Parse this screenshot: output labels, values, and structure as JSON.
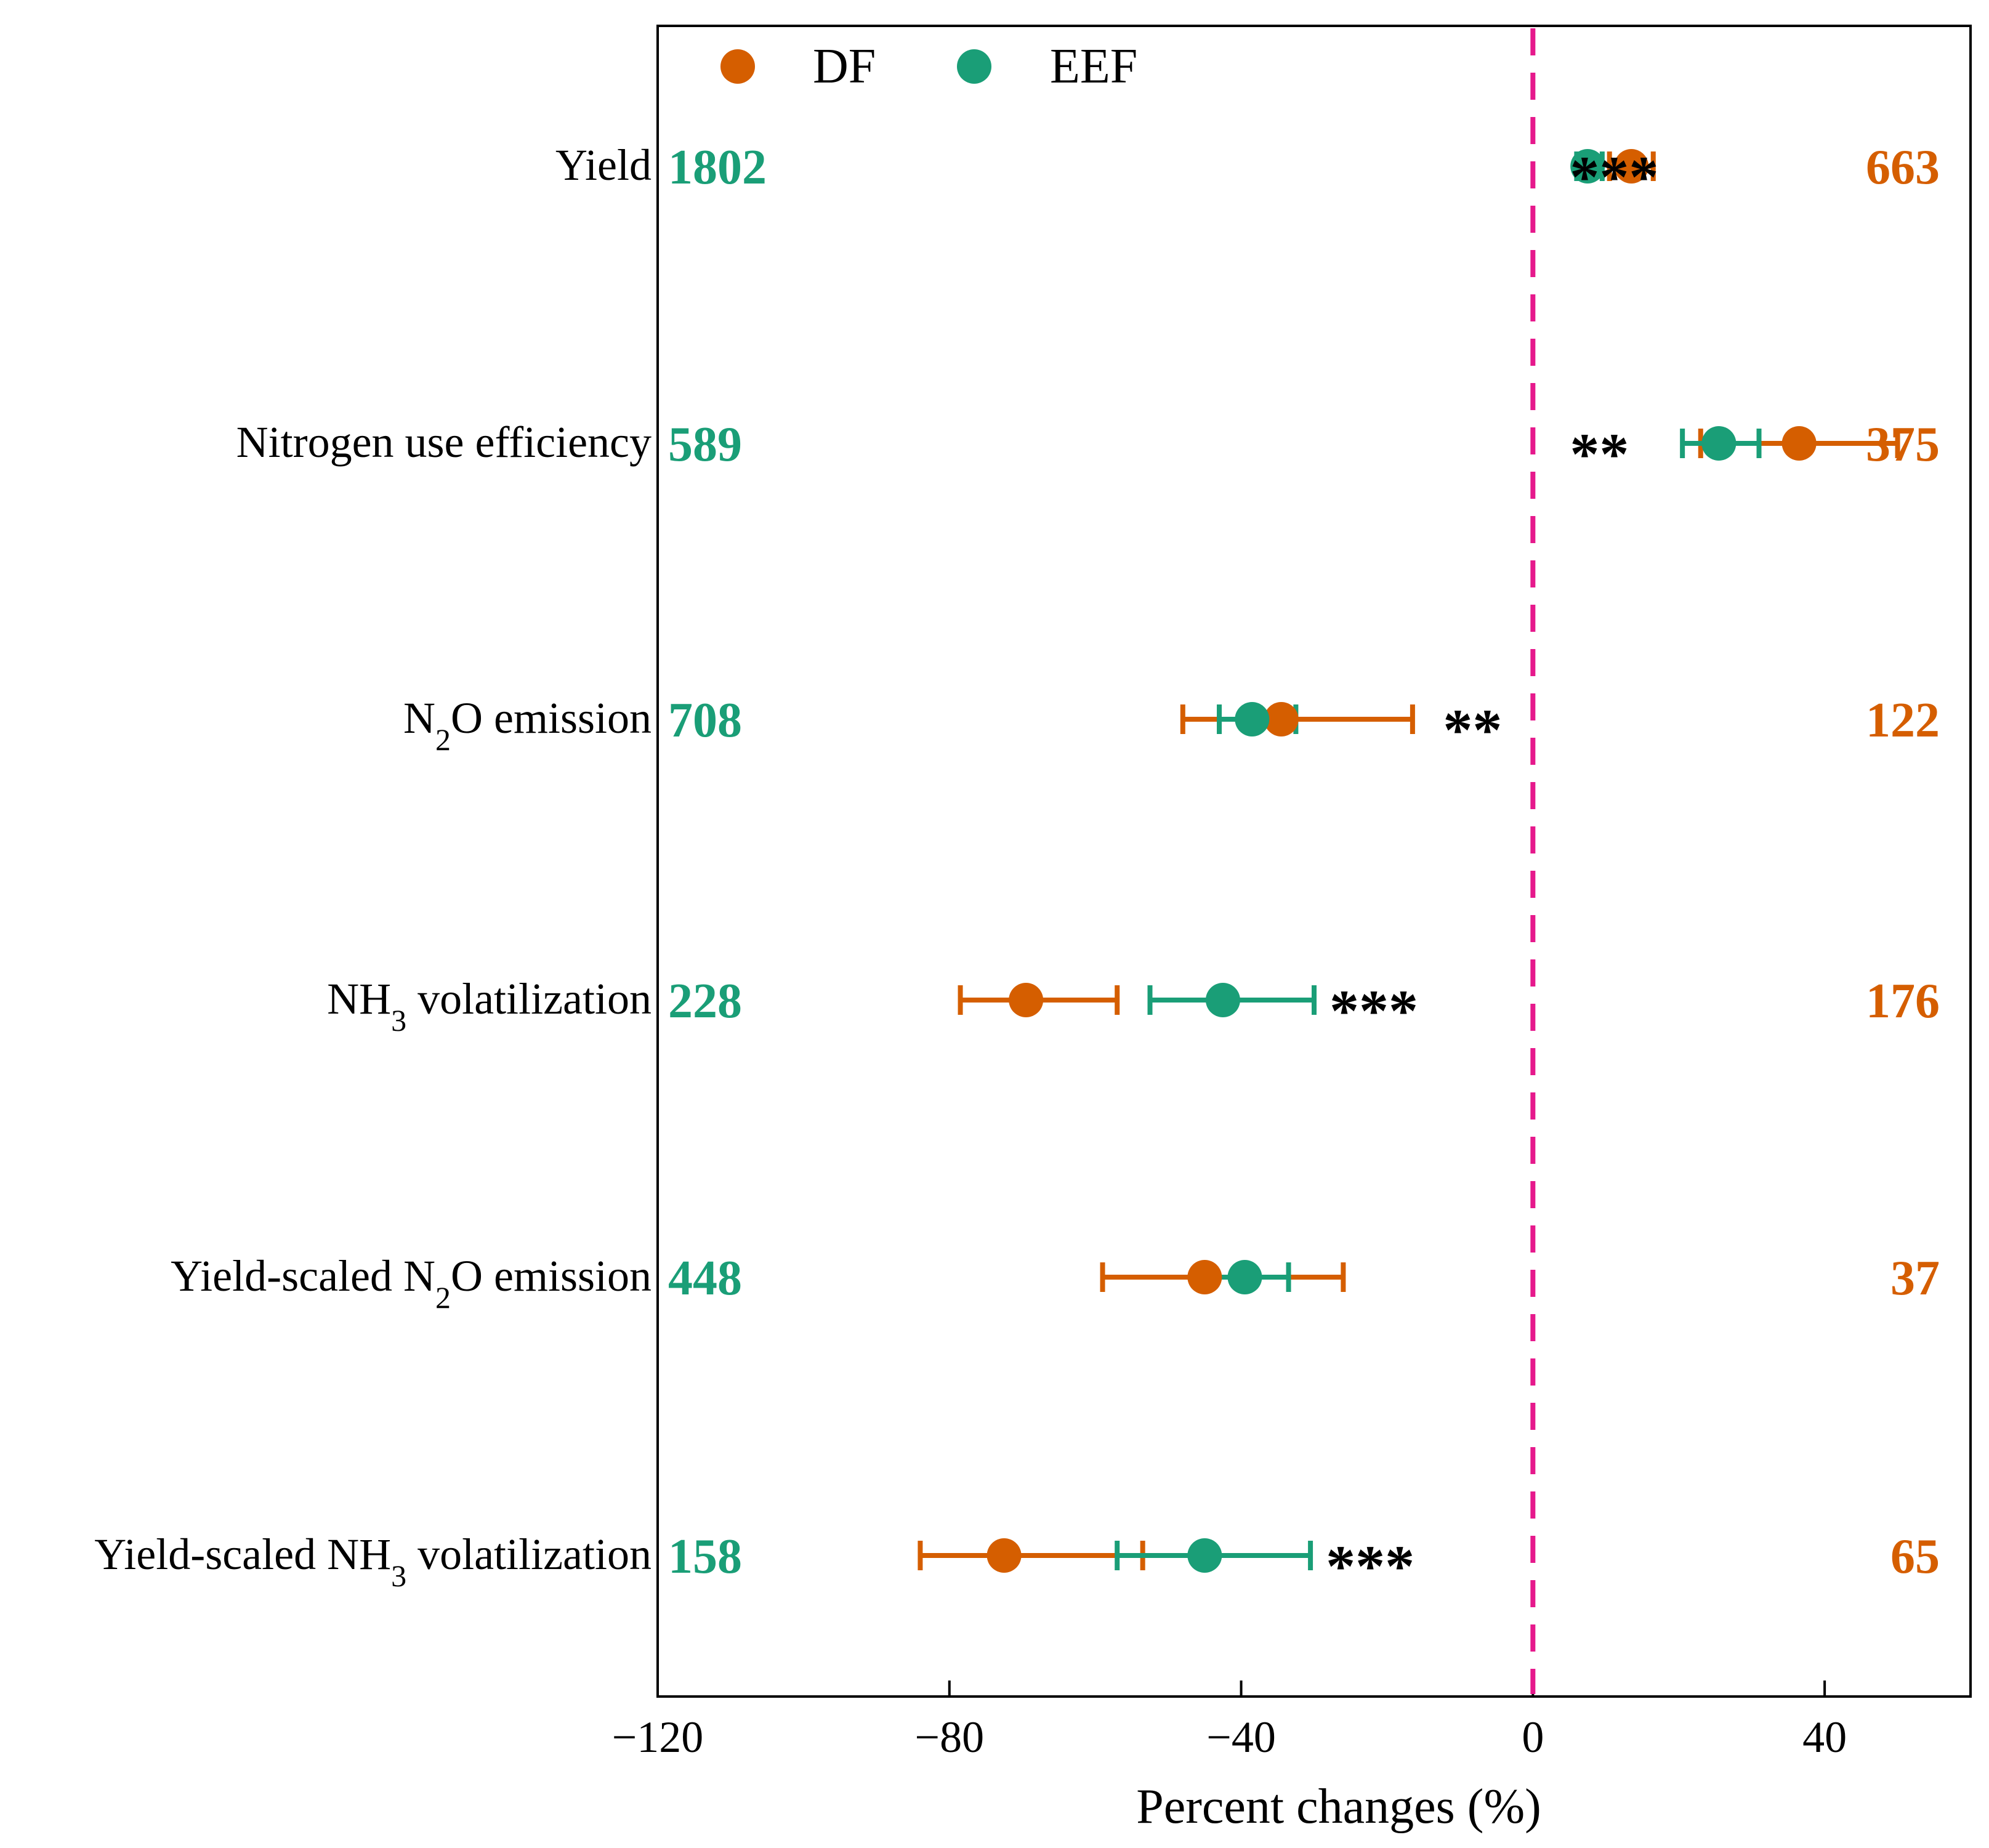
{
  "chart_data": {
    "type": "scatter",
    "subtype": "forest-plot",
    "xlabel": "Percent changes (%)",
    "xlim": [
      -120,
      60
    ],
    "xticks": [
      -120,
      -80,
      -40,
      0,
      40
    ],
    "xtick_labels": [
      "−120",
      "−80",
      "−40",
      "0",
      "40"
    ],
    "reference_line": {
      "x": 0,
      "style": "dashed",
      "color": "#E6198C"
    },
    "legend": {
      "placement": "top-left",
      "entries": [
        "DF",
        "EEF"
      ]
    },
    "series": [
      {
        "name": "DF",
        "color": "#D55E00"
      },
      {
        "name": "EEF",
        "color": "#1A9E77"
      }
    ],
    "categories": [
      {
        "label": "Yield",
        "sub": "",
        "label_end": "",
        "eef_n": "1802",
        "df_n": "663",
        "sig": "***",
        "df": {
          "mean": 13.5,
          "lo": 10.5,
          "hi": 16.5
        },
        "eef": {
          "mean": 7.5,
          "lo": 6.0,
          "hi": 9.5
        }
      },
      {
        "label": "Nitrogen use efficiency",
        "sub": "",
        "label_end": "",
        "eef_n": "589",
        "df_n": "375",
        "sig": "**",
        "df": {
          "mean": 36.5,
          "lo": 23.0,
          "hi": 50.0
        },
        "eef": {
          "mean": 25.5,
          "lo": 20.5,
          "hi": 31.0
        }
      },
      {
        "label": "N",
        "sub": "2",
        "label_end": "O emission",
        "eef_n": "708",
        "df_n": "122",
        "sig": "**",
        "df": {
          "mean": -34.5,
          "lo": -48.0,
          "hi": -16.5
        },
        "eef": {
          "mean": -38.5,
          "lo": -43.0,
          "hi": -32.5
        }
      },
      {
        "label": "NH",
        "sub": "3",
        "label_end": " volatilization",
        "eef_n": "228",
        "df_n": "176",
        "sig": "***",
        "df": {
          "mean": -69.5,
          "lo": -78.5,
          "hi": -57.0
        },
        "eef": {
          "mean": -42.5,
          "lo": -52.5,
          "hi": -30.0
        }
      },
      {
        "label": "Yield-scaled N",
        "sub": "2",
        "label_end": "O emission",
        "eef_n": "448",
        "df_n": "37",
        "sig": "",
        "df": {
          "mean": -45.0,
          "lo": -59.0,
          "hi": -26.0
        },
        "eef": {
          "mean": -39.5,
          "lo": -45.5,
          "hi": -33.5
        }
      },
      {
        "label": "Yield-scaled NH",
        "sub": "3",
        "label_end": " volatilization",
        "eef_n": "158",
        "df_n": "65",
        "sig": "***",
        "df": {
          "mean": -72.5,
          "lo": -84.0,
          "hi": -53.5
        },
        "eef": {
          "mean": -45.0,
          "lo": -57.0,
          "hi": -30.5
        }
      }
    ]
  }
}
